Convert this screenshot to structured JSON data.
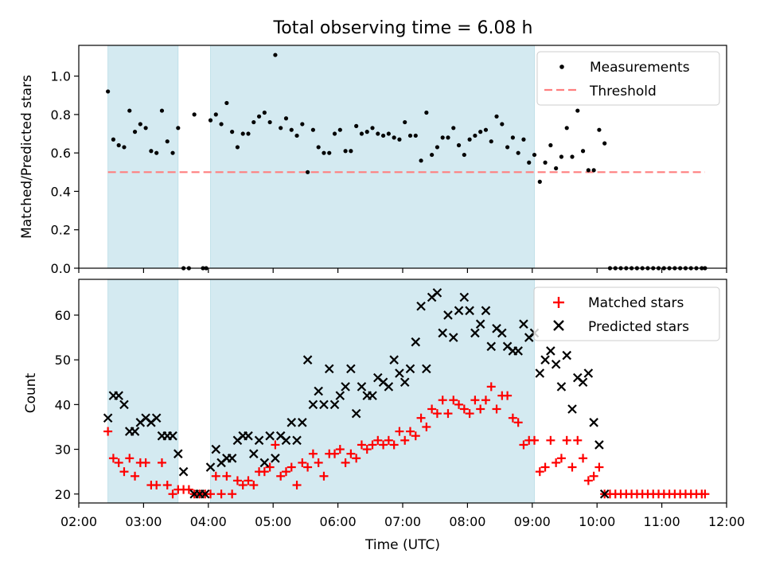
{
  "chart_data": [
    {
      "type": "scatter",
      "title": "Total observing time = 6.08 h",
      "xlabel": "",
      "ylabel": "Matched/Predicted stars",
      "xlim": [
        "02:00",
        "12:00"
      ],
      "ylim": [
        0,
        1.16
      ],
      "yticks": [
        "0.0",
        "0.2",
        "0.4",
        "0.6",
        "0.8",
        "1.0"
      ],
      "ytick_values": [
        0,
        0.2,
        0.4,
        0.6,
        0.8,
        1.0
      ],
      "xticks": [
        "02:00",
        "03:00",
        "04:00",
        "05:00",
        "06:00",
        "07:00",
        "08:00",
        "09:00",
        "10:00",
        "11:00",
        "12:00"
      ],
      "legend_position": "top-right",
      "shaded_intervals": [
        [
          "02:27",
          "03:32"
        ],
        [
          "04:02",
          "09:02"
        ]
      ],
      "shade_color": "#d4eaf1",
      "threshold": {
        "name": "Threshold",
        "value": 0.5,
        "x_range": [
          "02:27",
          "11:40"
        ],
        "color": "#ff7f7f",
        "style": "dashed"
      },
      "series": [
        {
          "name": "Measurements",
          "marker": "dot",
          "color": "#000000",
          "x": [
            "02:27",
            "02:32",
            "02:37",
            "02:42",
            "02:47",
            "02:52",
            "02:57",
            "03:02",
            "03:07",
            "03:12",
            "03:17",
            "03:22",
            "03:27",
            "03:32",
            "03:37",
            "03:42",
            "03:47",
            "03:55",
            "03:58",
            "04:02",
            "04:07",
            "04:12",
            "04:17",
            "04:22",
            "04:27",
            "04:32",
            "04:37",
            "04:42",
            "04:47",
            "04:52",
            "04:57",
            "05:02",
            "05:07",
            "05:12",
            "05:17",
            "05:22",
            "05:27",
            "05:32",
            "05:37",
            "05:42",
            "05:47",
            "05:52",
            "05:57",
            "06:02",
            "06:07",
            "06:12",
            "06:17",
            "06:22",
            "06:27",
            "06:32",
            "06:37",
            "06:42",
            "06:47",
            "06:52",
            "06:57",
            "07:02",
            "07:07",
            "07:12",
            "07:17",
            "07:22",
            "07:27",
            "07:32",
            "07:37",
            "07:42",
            "07:47",
            "07:52",
            "07:57",
            "08:02",
            "08:07",
            "08:12",
            "08:17",
            "08:22",
            "08:27",
            "08:32",
            "08:37",
            "08:42",
            "08:47",
            "08:52",
            "08:57",
            "09:02",
            "09:07",
            "09:12",
            "09:17",
            "09:22",
            "09:27",
            "09:32",
            "09:37",
            "09:42",
            "09:47",
            "09:52",
            "09:57",
            "10:02",
            "10:07",
            "10:12",
            "10:17",
            "10:22",
            "10:27",
            "10:32",
            "10:37",
            "10:42",
            "10:47",
            "10:52",
            "10:57",
            "11:02",
            "11:07",
            "11:12",
            "11:17",
            "11:22",
            "11:27",
            "11:32",
            "11:37",
            "11:40"
          ],
          "y": [
            0.92,
            0.67,
            0.64,
            0.63,
            0.82,
            0.71,
            0.75,
            0.73,
            0.61,
            0.6,
            0.82,
            0.66,
            0.6,
            0.73,
            0.0,
            0.0,
            0.8,
            0.0,
            0.0,
            0.77,
            0.8,
            0.75,
            0.86,
            0.71,
            0.63,
            0.7,
            0.7,
            0.76,
            0.79,
            0.81,
            0.76,
            1.11,
            0.73,
            0.78,
            0.72,
            0.69,
            0.75,
            0.5,
            0.72,
            0.63,
            0.6,
            0.6,
            0.7,
            0.72,
            0.61,
            0.61,
            0.74,
            0.7,
            0.71,
            0.73,
            0.7,
            0.69,
            0.7,
            0.68,
            0.67,
            0.76,
            0.69,
            0.69,
            0.56,
            0.81,
            0.59,
            0.63,
            0.68,
            0.68,
            0.73,
            0.64,
            0.59,
            0.67,
            0.69,
            0.71,
            0.72,
            0.66,
            0.79,
            0.75,
            0.63,
            0.68,
            0.6,
            0.67,
            0.55,
            0.59,
            0.45,
            0.55,
            0.64,
            0.52,
            0.58,
            0.73,
            0.58,
            0.82,
            0.61,
            0.51,
            0.51,
            0.72,
            0.65,
            0.0,
            0.0,
            0.0,
            0.0,
            0.0,
            0.0,
            0.0,
            0.0,
            0.0,
            0.0,
            0.0,
            0.0,
            0.0,
            0.0,
            0.0,
            0.0,
            0.0,
            0.0,
            0.0
          ]
        }
      ]
    },
    {
      "type": "scatter",
      "title": "",
      "xlabel": "Time (UTC)",
      "ylabel": "Count",
      "xlim": [
        "02:00",
        "12:00"
      ],
      "ylim": [
        18,
        68
      ],
      "yticks": [
        "20",
        "30",
        "40",
        "50",
        "60"
      ],
      "ytick_values": [
        20,
        30,
        40,
        50,
        60
      ],
      "xticks": [
        "02:00",
        "03:00",
        "04:00",
        "05:00",
        "06:00",
        "07:00",
        "08:00",
        "09:00",
        "10:00",
        "11:00",
        "12:00"
      ],
      "legend_position": "top-right",
      "shaded_intervals": [
        [
          "02:27",
          "03:32"
        ],
        [
          "04:02",
          "09:02"
        ]
      ],
      "shade_color": "#d4eaf1",
      "series": [
        {
          "name": "Matched stars",
          "marker": "plus",
          "color": "#ff0000",
          "x": [
            "02:27",
            "02:32",
            "02:37",
            "02:42",
            "02:47",
            "02:52",
            "02:57",
            "03:02",
            "03:07",
            "03:12",
            "03:17",
            "03:22",
            "03:27",
            "03:32",
            "03:37",
            "03:42",
            "03:47",
            "03:52",
            "03:57",
            "04:02",
            "04:07",
            "04:12",
            "04:17",
            "04:22",
            "04:27",
            "04:32",
            "04:37",
            "04:42",
            "04:47",
            "04:52",
            "04:57",
            "05:02",
            "05:07",
            "05:12",
            "05:17",
            "05:22",
            "05:27",
            "05:32",
            "05:37",
            "05:42",
            "05:47",
            "05:52",
            "05:57",
            "06:02",
            "06:07",
            "06:12",
            "06:17",
            "06:22",
            "06:27",
            "06:32",
            "06:37",
            "06:42",
            "06:47",
            "06:52",
            "06:57",
            "07:02",
            "07:07",
            "07:12",
            "07:17",
            "07:22",
            "07:27",
            "07:32",
            "07:37",
            "07:42",
            "07:47",
            "07:52",
            "07:57",
            "08:02",
            "08:07",
            "08:12",
            "08:17",
            "08:22",
            "08:27",
            "08:32",
            "08:37",
            "08:42",
            "08:47",
            "08:52",
            "08:57",
            "09:02",
            "09:07",
            "09:12",
            "09:17",
            "09:22",
            "09:27",
            "09:32",
            "09:37",
            "09:42",
            "09:47",
            "09:52",
            "09:57",
            "10:02",
            "10:07",
            "10:12",
            "10:17",
            "10:22",
            "10:27",
            "10:32",
            "10:37",
            "10:42",
            "10:47",
            "10:52",
            "10:57",
            "11:02",
            "11:07",
            "11:12",
            "11:17",
            "11:22",
            "11:27",
            "11:32",
            "11:37",
            "11:40"
          ],
          "y": [
            34,
            28,
            27,
            25,
            28,
            24,
            27,
            27,
            22,
            22,
            27,
            22,
            20,
            21,
            21,
            21,
            20,
            20,
            20,
            20,
            24,
            20,
            24,
            20,
            23,
            22,
            23,
            22,
            25,
            25,
            26,
            31,
            24,
            25,
            26,
            22,
            27,
            26,
            29,
            27,
            24,
            29,
            29,
            30,
            27,
            29,
            28,
            31,
            30,
            31,
            32,
            31,
            32,
            31,
            34,
            32,
            34,
            33,
            37,
            35,
            39,
            38,
            41,
            38,
            41,
            40,
            39,
            38,
            41,
            39,
            41,
            44,
            39,
            42,
            42,
            37,
            36,
            31,
            32,
            32,
            25,
            26,
            32,
            27,
            28,
            32,
            26,
            32,
            28,
            23,
            24,
            26,
            20,
            20,
            20,
            20,
            20,
            20,
            20,
            20,
            20,
            20,
            20,
            20,
            20,
            20,
            20,
            20,
            20,
            20,
            20,
            20
          ]
        },
        {
          "name": "Predicted stars",
          "marker": "x",
          "color": "#000000",
          "x": [
            "02:27",
            "02:32",
            "02:37",
            "02:42",
            "02:47",
            "02:52",
            "02:57",
            "03:02",
            "03:07",
            "03:12",
            "03:17",
            "03:22",
            "03:27",
            "03:32",
            "03:37",
            "03:47",
            "03:52",
            "03:57",
            "04:02",
            "04:07",
            "04:12",
            "04:17",
            "04:22",
            "04:27",
            "04:32",
            "04:37",
            "04:42",
            "04:47",
            "04:52",
            "04:57",
            "05:02",
            "05:07",
            "05:12",
            "05:17",
            "05:22",
            "05:27",
            "05:32",
            "05:37",
            "05:42",
            "05:47",
            "05:52",
            "05:57",
            "06:02",
            "06:07",
            "06:12",
            "06:17",
            "06:22",
            "06:27",
            "06:32",
            "06:37",
            "06:42",
            "06:47",
            "06:52",
            "06:57",
            "07:02",
            "07:07",
            "07:12",
            "07:17",
            "07:22",
            "07:27",
            "07:32",
            "07:37",
            "07:42",
            "07:47",
            "07:52",
            "07:57",
            "08:02",
            "08:07",
            "08:12",
            "08:17",
            "08:22",
            "08:27",
            "08:32",
            "08:37",
            "08:42",
            "08:47",
            "08:52",
            "08:57",
            "09:02",
            "09:07",
            "09:12",
            "09:17",
            "09:22",
            "09:27",
            "09:32",
            "09:37",
            "09:42",
            "09:47",
            "09:52",
            "09:57",
            "10:02",
            "10:07"
          ],
          "y": [
            37,
            42,
            42,
            40,
            34,
            34,
            36,
            37,
            36,
            37,
            33,
            33,
            33,
            29,
            25,
            20,
            20,
            20,
            26,
            30,
            27,
            28,
            28,
            32,
            33,
            33,
            29,
            32,
            27,
            33,
            28,
            33,
            32,
            36,
            32,
            36,
            50,
            40,
            43,
            40,
            48,
            40,
            42,
            44,
            48,
            38,
            44,
            42,
            42,
            46,
            45,
            44,
            50,
            47,
            45,
            48,
            54,
            62,
            48,
            64,
            65,
            56,
            60,
            55,
            61,
            64,
            61,
            56,
            58,
            61,
            53,
            57,
            56,
            53,
            52,
            52,
            58,
            55,
            56,
            47,
            50,
            52,
            49,
            44,
            51,
            39,
            46,
            45,
            47,
            36,
            31,
            20
          ]
        }
      ]
    }
  ]
}
